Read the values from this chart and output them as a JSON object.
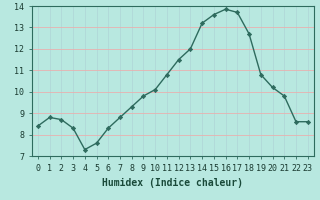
{
  "x": [
    0,
    1,
    2,
    3,
    4,
    5,
    6,
    7,
    8,
    9,
    10,
    11,
    12,
    13,
    14,
    15,
    16,
    17,
    18,
    19,
    20,
    21,
    22,
    23
  ],
  "y": [
    8.4,
    8.8,
    8.7,
    8.3,
    7.3,
    7.6,
    8.3,
    8.8,
    9.3,
    9.8,
    10.1,
    10.8,
    11.5,
    12.0,
    13.2,
    13.6,
    13.85,
    13.7,
    12.7,
    10.8,
    10.2,
    9.8,
    8.6,
    8.6
  ],
  "line_color": "#2e6b5e",
  "marker": "D",
  "marker_size": 2.2,
  "bg_color": "#b8e8e0",
  "grid_color_h": "#e8b0b0",
  "grid_color_v": "#b0d8d8",
  "xlabel": "Humidex (Indice chaleur)",
  "xlim": [
    -0.5,
    23.5
  ],
  "ylim": [
    7,
    14
  ],
  "yticks": [
    7,
    8,
    9,
    10,
    11,
    12,
    13,
    14
  ],
  "xticks": [
    0,
    1,
    2,
    3,
    4,
    5,
    6,
    7,
    8,
    9,
    10,
    11,
    12,
    13,
    14,
    15,
    16,
    17,
    18,
    19,
    20,
    21,
    22,
    23
  ],
  "xlabel_fontsize": 7.0,
  "tick_fontsize": 6.0,
  "line_width": 1.0
}
